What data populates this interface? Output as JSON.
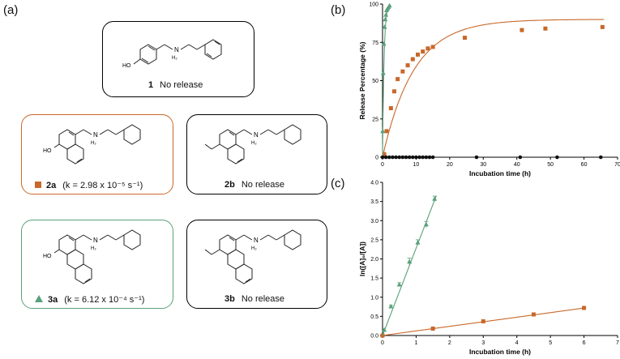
{
  "panels": {
    "a": "(a)",
    "b": "(b)",
    "c": "(c)"
  },
  "compounds": [
    {
      "id": "1",
      "note": "No release",
      "variant": "plain",
      "marker": ""
    },
    {
      "id": "2a",
      "note": "(k = 2.98 x 10⁻⁵ s⁻¹)",
      "variant": "orange",
      "marker": "square"
    },
    {
      "id": "2b",
      "note": "No release",
      "variant": "plain",
      "marker": ""
    },
    {
      "id": "3a",
      "note": "(k = 6.12 x 10⁻⁴ s⁻¹)",
      "variant": "green",
      "marker": "triangle"
    },
    {
      "id": "3b",
      "note": "No release",
      "variant": "plain",
      "marker": ""
    }
  ],
  "structure_labels": {
    "ho": "HO",
    "nh2": "N",
    "h2": "H₂",
    "plus": "+"
  },
  "colors": {
    "orange": "#c8682a",
    "green": "#5aa07a",
    "black": "#111111"
  },
  "chart_data": [
    {
      "type": "scatter",
      "xlabel": "Incubation time (h)",
      "ylabel": "Release Percentage (%)",
      "xlim": [
        0,
        70
      ],
      "ylim": [
        0,
        100
      ],
      "xticks": [
        0,
        10,
        20,
        30,
        40,
        50,
        60,
        70
      ],
      "yticks": [
        0,
        25,
        50,
        75,
        100
      ],
      "grid": false,
      "series": [
        {
          "marker": "square",
          "color": "#c8682a",
          "fit": "exponential",
          "k": 0.1073,
          "plateau": 90,
          "x": [
            0.5,
            1.2,
            2.5,
            3.5,
            4.5,
            6,
            7.5,
            9,
            10.5,
            12,
            13.5,
            15,
            24.5,
            41.5,
            48.5,
            65.5
          ],
          "y": [
            2,
            17,
            32,
            43,
            51,
            56,
            60,
            64,
            67,
            69,
            71,
            72,
            78,
            83,
            84,
            85
          ]
        },
        {
          "marker": "triangle",
          "color": "#5aa07a",
          "fit": "exponential",
          "k": 2.2,
          "x": [
            0.05,
            0.2,
            0.4,
            0.6,
            0.8,
            1.0,
            1.2,
            1.5,
            1.8,
            2.1
          ],
          "y": [
            17,
            55,
            74,
            85,
            90,
            93,
            96,
            97,
            98,
            99
          ]
        },
        {
          "marker": "circle",
          "color": "#111111",
          "fit": "none",
          "x": [
            0,
            1,
            2,
            3,
            4,
            5,
            6,
            7,
            8,
            9,
            10,
            11,
            12,
            13,
            14,
            15,
            28,
            41,
            52,
            65
          ],
          "y": [
            0,
            0,
            0,
            0,
            0,
            0,
            0,
            0,
            0,
            0,
            0,
            0,
            0,
            0,
            0,
            0,
            0,
            0,
            0,
            0
          ]
        }
      ]
    },
    {
      "type": "scatter",
      "xlabel": "Incubation time (h)",
      "ylabel": "ln([A]₀/[A])",
      "xlim": [
        0,
        7
      ],
      "ylim": [
        0,
        4
      ],
      "xticks": [
        0,
        1,
        2,
        3,
        4,
        5,
        6,
        7
      ],
      "yticks": [
        0.0,
        0.5,
        1.0,
        1.5,
        2.0,
        2.5,
        3.0,
        3.5,
        4.0
      ],
      "grid": false,
      "series": [
        {
          "marker": "square",
          "color": "#c8682a",
          "fit": "linear",
          "slope": 0.1195,
          "x": [
            0,
            1.5,
            3.0,
            4.5,
            6.0
          ],
          "y": [
            0,
            0.18,
            0.37,
            0.55,
            0.72
          ]
        },
        {
          "marker": "triangle",
          "color": "#5aa07a",
          "fit": "linear",
          "slope": 2.28,
          "x": [
            0.05,
            0.25,
            0.5,
            0.8,
            1.05,
            1.3,
            1.55
          ],
          "y": [
            0.15,
            0.76,
            1.33,
            1.93,
            2.43,
            2.9,
            3.57
          ],
          "err": [
            0,
            0.03,
            0.05,
            0.09,
            0.07,
            0.08,
            0.07
          ]
        }
      ]
    }
  ]
}
